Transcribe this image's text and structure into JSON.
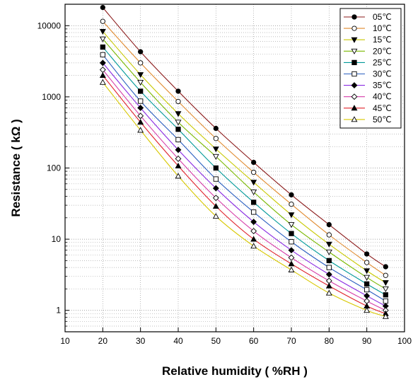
{
  "chart_data": {
    "type": "line",
    "title": "",
    "xlabel": "Relative humidity ( %RH )",
    "ylabel": "Resistance ( kΩ )",
    "xlim": [
      10,
      100
    ],
    "ylim": [
      0.5,
      20000
    ],
    "y_scale": "log",
    "grid": true,
    "legend_position": "top-right",
    "x_ticks": [
      "10",
      "20",
      "30",
      "40",
      "50",
      "60",
      "70",
      "80",
      "90",
      "100"
    ],
    "y_ticks": [
      "1",
      "10",
      "100",
      "1000",
      "10000"
    ],
    "x": [
      20,
      30,
      40,
      50,
      60,
      70,
      80,
      90,
      95
    ],
    "series": [
      {
        "name": "05℃",
        "marker": "circle-filled",
        "color": "#8b1a1a",
        "values": [
          18000,
          4300,
          1200,
          360,
          120,
          42,
          16,
          6.2,
          4.1
        ]
      },
      {
        "name": "10℃",
        "marker": "circle-open",
        "color": "#e08a2e",
        "values": [
          11500,
          3000,
          860,
          260,
          87,
          31,
          11.5,
          4.7,
          3.1
        ]
      },
      {
        "name": "15℃",
        "marker": "triangle-down-filled",
        "color": "#c8c800",
        "values": [
          8300,
          2050,
          580,
          185,
          63,
          22,
          8.5,
          3.6,
          2.45
        ]
      },
      {
        "name": "20℃",
        "marker": "triangle-down-open",
        "color": "#7ab800",
        "values": [
          6500,
          1600,
          440,
          145,
          46,
          16,
          6.6,
          2.9,
          2.0
        ]
      },
      {
        "name": "25℃",
        "marker": "square-filled",
        "color": "#009999",
        "values": [
          5000,
          1200,
          350,
          100,
          33,
          12,
          5.0,
          2.35,
          1.65
        ]
      },
      {
        "name": "30℃",
        "marker": "square-open",
        "color": "#2a5fc0",
        "values": [
          3900,
          870,
          250,
          70,
          24,
          9.2,
          4.0,
          1.95,
          1.35
        ]
      },
      {
        "name": "35℃",
        "marker": "diamond-filled",
        "color": "#8a2be2",
        "values": [
          3000,
          700,
          180,
          52,
          17.5,
          7.0,
          3.2,
          1.6,
          1.15
        ]
      },
      {
        "name": "40℃",
        "marker": "diamond-open",
        "color": "#d63ca8",
        "values": [
          2400,
          540,
          135,
          38,
          13,
          5.5,
          2.6,
          1.35,
          1.0
        ]
      },
      {
        "name": "45℃",
        "marker": "triangle-up-filled",
        "color": "#e0202a",
        "values": [
          2000,
          440,
          107,
          29,
          10,
          4.5,
          2.2,
          1.15,
          0.9
        ]
      },
      {
        "name": "50℃",
        "marker": "triangle-up-open",
        "color": "#d8c800",
        "values": [
          1600,
          340,
          77,
          21,
          8,
          3.7,
          1.75,
          1.0,
          0.82
        ]
      }
    ]
  }
}
